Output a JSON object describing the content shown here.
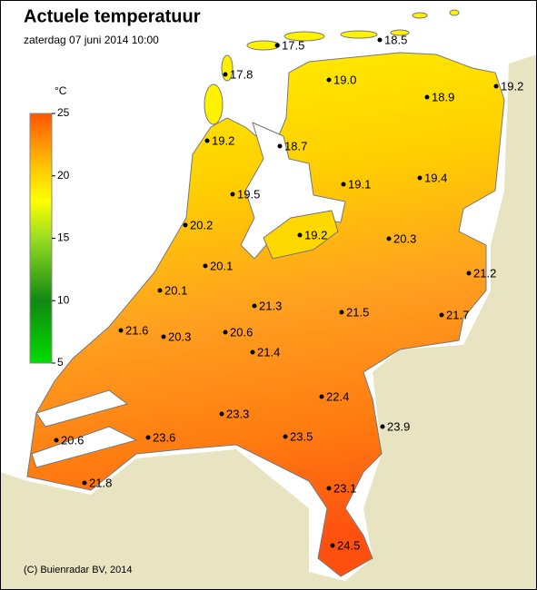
{
  "header": {
    "title": "Actuele temperatuur",
    "subtitle": "zaterdag 07 juni 2014 10:00"
  },
  "legend": {
    "unit": "°C",
    "range": [
      5,
      25
    ],
    "ticks": [
      5,
      10,
      15,
      20,
      25
    ]
  },
  "stations": [
    "17.5",
    "18.5",
    "17.8",
    "19.0",
    "18.9",
    "19.2",
    "19.2",
    "18.7",
    "19.1",
    "19.4",
    "19.5",
    "20.2",
    "19.2",
    "20.3",
    "21.2",
    "20.1",
    "20.1",
    "21.3",
    "21.5",
    "21.7",
    "21.6",
    "20.3",
    "20.6",
    "21.4",
    "22.4",
    "23.3",
    "23.9",
    "20.6",
    "23.6",
    "23.5",
    "21.8",
    "23.1",
    "24.5"
  ],
  "footer": "(C) Buienradar BV, 2014"
}
